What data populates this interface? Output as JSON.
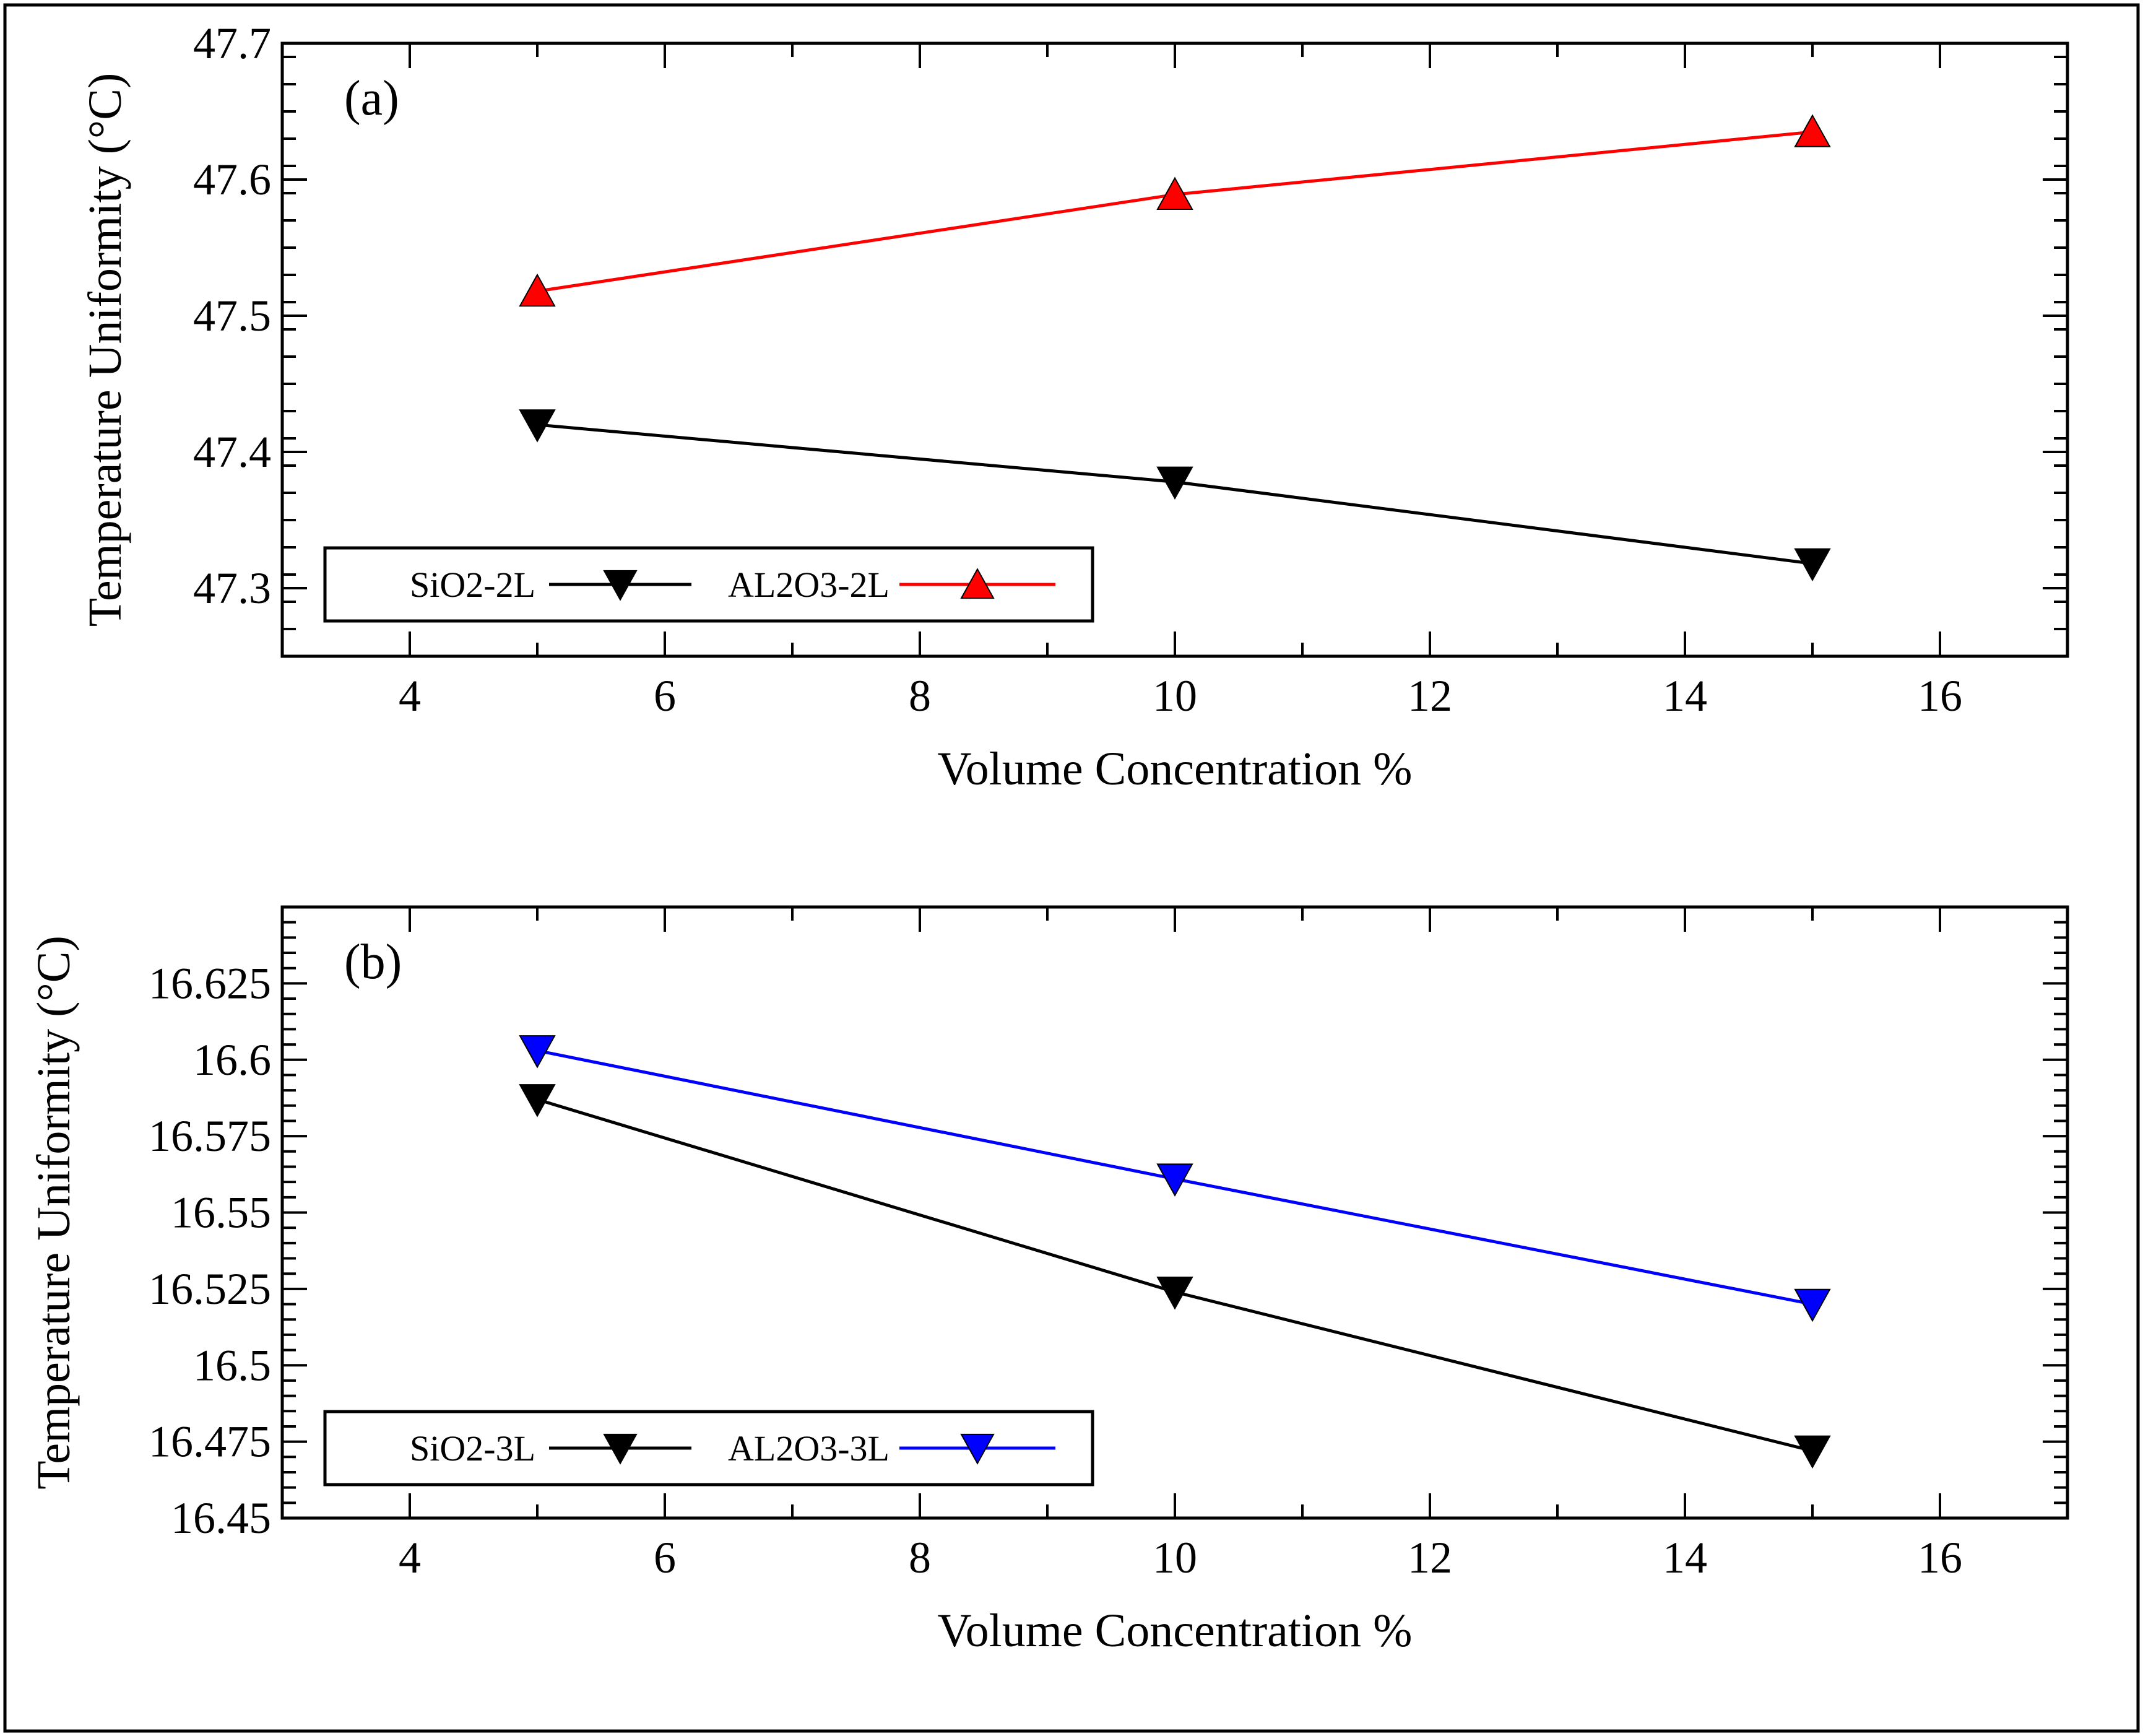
{
  "chart_data": [
    {
      "type": "line",
      "panel_label": "(a)",
      "xlabel": "Volume Concentration %",
      "ylabel": "Temperature Uniformity (°C)",
      "xlim": [
        3,
        17
      ],
      "ylim": [
        47.25,
        47.7
      ],
      "xticks": [
        4,
        6,
        8,
        10,
        12,
        14,
        16
      ],
      "xtick_labels": [
        "4",
        "6",
        "8",
        "10",
        "12",
        "14",
        "16"
      ],
      "yticks": [
        47.3,
        47.4,
        47.5,
        47.6,
        47.7
      ],
      "ytick_labels": [
        "47.3",
        "47.4",
        "47.5",
        "47.6",
        "47.7"
      ],
      "legend_position": "bottom-left",
      "series": [
        {
          "name": "SiO2-2L",
          "color": "#000000",
          "marker": "triangle-down",
          "x": [
            5,
            10,
            15
          ],
          "y": [
            47.42,
            47.378,
            47.318
          ]
        },
        {
          "name": "AL2O3-2L",
          "color": "#ff0000",
          "marker": "triangle-up",
          "x": [
            5,
            10,
            15
          ],
          "y": [
            47.518,
            47.589,
            47.635
          ]
        }
      ]
    },
    {
      "type": "line",
      "panel_label": "(b)",
      "xlabel": "Volume Concentration %",
      "ylabel": "Temperature Uniformity (°C)",
      "xlim": [
        3,
        17
      ],
      "ylim": [
        16.45,
        16.65
      ],
      "xticks": [
        4,
        6,
        8,
        10,
        12,
        14,
        16
      ],
      "xtick_labels": [
        "4",
        "6",
        "8",
        "10",
        "12",
        "14",
        "16"
      ],
      "yticks": [
        16.45,
        16.475,
        16.5,
        16.525,
        16.55,
        16.575,
        16.6,
        16.625
      ],
      "ytick_labels": [
        "16.45",
        "16.475",
        "16.5",
        "16.525",
        "16.55",
        "16.575",
        "16.6",
        "16.625"
      ],
      "legend_position": "bottom-left",
      "series": [
        {
          "name": "SiO2-3L",
          "color": "#000000",
          "marker": "triangle-down",
          "x": [
            5,
            10,
            15
          ],
          "y": [
            16.587,
            16.524,
            16.472
          ]
        },
        {
          "name": "AL2O3-3L",
          "color": "#0000ff",
          "marker": "triangle-down",
          "x": [
            5,
            10,
            15
          ],
          "y": [
            16.603,
            16.561,
            16.52
          ]
        }
      ]
    }
  ]
}
